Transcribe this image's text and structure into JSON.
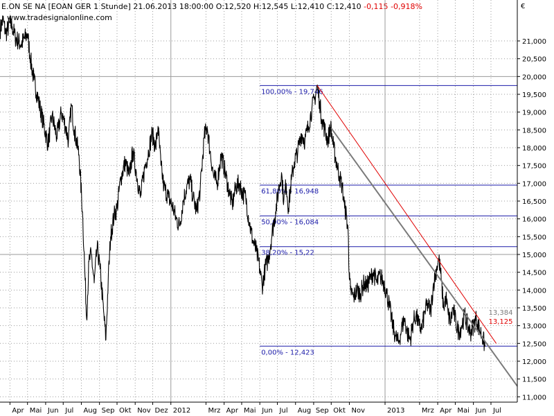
{
  "header": {
    "instrument": "E.ON SE NA [EOAN GER  1 Stunde] 21.06.2013 18:00:00",
    "open": "O:12,520",
    "high": "H:12,545",
    "low": "L:12,410",
    "close": "C:12,410",
    "change": "-0,115",
    "change_pct": "-0,918%"
  },
  "watermark": "www.tradesignalonline.com",
  "colors": {
    "price": "#000000",
    "fib": "#1a1aa8",
    "trend_grey": "#7a7a7a",
    "trend_red": "#e00000",
    "grid": "#9a9a9a"
  },
  "chart_data": {
    "type": "line",
    "ylabel": "€",
    "ylim": [
      10.85,
      22.15
    ],
    "y_ticks": [
      {
        "value": 11.0,
        "label": "11,000"
      },
      {
        "value": 11.5,
        "label": "11,500"
      },
      {
        "value": 12.0,
        "label": "12,000"
      },
      {
        "value": 12.5,
        "label": "12,500"
      },
      {
        "value": 13.0,
        "label": "13,000"
      },
      {
        "value": 13.5,
        "label": "13,500"
      },
      {
        "value": 14.0,
        "label": "14,000"
      },
      {
        "value": 14.5,
        "label": "14,500"
      },
      {
        "value": 15.0,
        "label": "15,000"
      },
      {
        "value": 15.5,
        "label": "15,500"
      },
      {
        "value": 16.0,
        "label": "16,000"
      },
      {
        "value": 16.5,
        "label": "16,500"
      },
      {
        "value": 17.0,
        "label": "17,000"
      },
      {
        "value": 17.5,
        "label": "17,500"
      },
      {
        "value": 18.0,
        "label": "18,000"
      },
      {
        "value": 18.5,
        "label": "18,500"
      },
      {
        "value": 19.0,
        "label": "19,000"
      },
      {
        "value": 19.5,
        "label": "19,500"
      },
      {
        "value": 20.0,
        "label": "20,000"
      },
      {
        "value": 20.5,
        "label": "20,500"
      },
      {
        "value": 21.0,
        "label": "21,000"
      }
    ],
    "x_range": [
      "2011-03-15",
      "2013-08-15"
    ],
    "x_ticks": [
      {
        "date": "2011-04-01",
        "label": "Apr"
      },
      {
        "date": "2011-05-01",
        "label": "Mai"
      },
      {
        "date": "2011-06-01",
        "label": "Jun"
      },
      {
        "date": "2011-07-01",
        "label": "Jul"
      },
      {
        "date": "2011-08-01",
        "label": "Aug"
      },
      {
        "date": "2011-09-01",
        "label": "Sep"
      },
      {
        "date": "2011-10-01",
        "label": "Okt"
      },
      {
        "date": "2011-11-01",
        "label": "Nov"
      },
      {
        "date": "2011-12-01",
        "label": "Dez"
      },
      {
        "date": "2012-01-01",
        "label": "2012"
      },
      {
        "date": "2012-03-01",
        "label": "Mrz"
      },
      {
        "date": "2012-04-01",
        "label": "Apr"
      },
      {
        "date": "2012-05-01",
        "label": "Mai"
      },
      {
        "date": "2012-06-01",
        "label": "Jun"
      },
      {
        "date": "2012-07-01",
        "label": "Jul"
      },
      {
        "date": "2012-08-01",
        "label": "Aug"
      },
      {
        "date": "2012-09-01",
        "label": "Sep"
      },
      {
        "date": "2012-10-01",
        "label": "Okt"
      },
      {
        "date": "2012-11-01",
        "label": "Nov"
      },
      {
        "date": "2013-01-01",
        "label": "2013"
      },
      {
        "date": "2013-03-01",
        "label": "Mrz"
      },
      {
        "date": "2013-04-01",
        "label": "Apr"
      },
      {
        "date": "2013-05-01",
        "label": "Mai"
      },
      {
        "date": "2013-06-01",
        "label": "Jun"
      },
      {
        "date": "2013-07-01",
        "label": "Jul"
      }
    ],
    "grid": true,
    "series": [
      {
        "points": [
          [
            "2011-03-15",
            21.3
          ],
          [
            "2011-03-20",
            21.6
          ],
          [
            "2011-03-25",
            21.2
          ],
          [
            "2011-04-01",
            21.5
          ],
          [
            "2011-04-05",
            21.4
          ],
          [
            "2011-04-10",
            21.1
          ],
          [
            "2011-04-20",
            20.9
          ],
          [
            "2011-05-01",
            21.2
          ],
          [
            "2011-05-06",
            20.5
          ],
          [
            "2011-05-12",
            19.9
          ],
          [
            "2011-05-20",
            19.3
          ],
          [
            "2011-05-28",
            18.7
          ],
          [
            "2011-06-05",
            18.1
          ],
          [
            "2011-06-12",
            18.9
          ],
          [
            "2011-06-20",
            18.3
          ],
          [
            "2011-06-28",
            19.0
          ],
          [
            "2011-07-05",
            18.6
          ],
          [
            "2011-07-10",
            18.2
          ],
          [
            "2011-07-15",
            19.2
          ],
          [
            "2011-07-20",
            18.5
          ],
          [
            "2011-07-28",
            17.8
          ],
          [
            "2011-08-03",
            16.2
          ],
          [
            "2011-08-07",
            14.5
          ],
          [
            "2011-08-10",
            13.2
          ],
          [
            "2011-08-14",
            14.8
          ],
          [
            "2011-08-18",
            15.0
          ],
          [
            "2011-08-23",
            14.2
          ],
          [
            "2011-08-28",
            15.2
          ],
          [
            "2011-09-02",
            14.6
          ],
          [
            "2011-09-08",
            13.4
          ],
          [
            "2011-09-12",
            12.6
          ],
          [
            "2011-09-16",
            14.3
          ],
          [
            "2011-09-20",
            15.5
          ],
          [
            "2011-09-26",
            16.1
          ],
          [
            "2011-10-01",
            16.3
          ],
          [
            "2011-10-07",
            17.1
          ],
          [
            "2011-10-15",
            17.6
          ],
          [
            "2011-10-22",
            17.2
          ],
          [
            "2011-10-28",
            17.9
          ],
          [
            "2011-11-03",
            17.3
          ],
          [
            "2011-11-10",
            16.6
          ],
          [
            "2011-11-17",
            17.4
          ],
          [
            "2011-11-24",
            17.9
          ],
          [
            "2011-11-30",
            18.4
          ],
          [
            "2011-12-06",
            18.0
          ],
          [
            "2011-12-10",
            18.6
          ],
          [
            "2011-12-15",
            17.5
          ],
          [
            "2011-12-20",
            16.9
          ],
          [
            "2011-12-28",
            16.6
          ],
          [
            "2012-01-05",
            16.3
          ],
          [
            "2012-01-10",
            16.0
          ],
          [
            "2012-01-16",
            15.8
          ],
          [
            "2012-01-22",
            16.5
          ],
          [
            "2012-01-28",
            16.9
          ],
          [
            "2012-02-03",
            17.1
          ],
          [
            "2012-02-08",
            16.6
          ],
          [
            "2012-02-14",
            16.2
          ],
          [
            "2012-02-20",
            16.8
          ],
          [
            "2012-02-27",
            18.3
          ],
          [
            "2012-03-03",
            18.6
          ],
          [
            "2012-03-08",
            17.9
          ],
          [
            "2012-03-14",
            17.2
          ],
          [
            "2012-03-20",
            17.0
          ],
          [
            "2012-03-27",
            17.8
          ],
          [
            "2012-04-03",
            17.3
          ],
          [
            "2012-04-09",
            16.8
          ],
          [
            "2012-04-15",
            16.4
          ],
          [
            "2012-04-21",
            16.9
          ],
          [
            "2012-04-27",
            17.0
          ],
          [
            "2012-05-03",
            16.7
          ],
          [
            "2012-05-08",
            16.6
          ],
          [
            "2012-05-14",
            15.9
          ],
          [
            "2012-05-20",
            15.4
          ],
          [
            "2012-05-26",
            15.1
          ],
          [
            "2012-06-01",
            14.6
          ],
          [
            "2012-06-05",
            14.1
          ],
          [
            "2012-06-10",
            14.6
          ],
          [
            "2012-06-16",
            14.9
          ],
          [
            "2012-06-22",
            15.6
          ],
          [
            "2012-06-28",
            16.2
          ],
          [
            "2012-07-03",
            16.8
          ],
          [
            "2012-07-08",
            17.3
          ],
          [
            "2012-07-12",
            16.5
          ],
          [
            "2012-07-16",
            17.0
          ],
          [
            "2012-07-20",
            16.3
          ],
          [
            "2012-07-25",
            17.1
          ],
          [
            "2012-07-30",
            17.6
          ],
          [
            "2012-08-05",
            17.9
          ],
          [
            "2012-08-11",
            18.4
          ],
          [
            "2012-08-17",
            18.2
          ],
          [
            "2012-08-23",
            18.6
          ],
          [
            "2012-08-29",
            19.1
          ],
          [
            "2012-09-03",
            19.4
          ],
          [
            "2012-09-07",
            19.746
          ],
          [
            "2012-09-11",
            19.3
          ],
          [
            "2012-09-15",
            18.8
          ],
          [
            "2012-09-20",
            18.5
          ],
          [
            "2012-09-25",
            18.2
          ],
          [
            "2012-09-30",
            18.6
          ],
          [
            "2012-10-05",
            18.0
          ],
          [
            "2012-10-10",
            17.6
          ],
          [
            "2012-10-15",
            17.2
          ],
          [
            "2012-10-20",
            16.9
          ],
          [
            "2012-10-24",
            16.3
          ],
          [
            "2012-10-27",
            16.1
          ],
          [
            "2012-10-30",
            15.6
          ],
          [
            "2012-11-01",
            14.3
          ],
          [
            "2012-11-03",
            14.0
          ],
          [
            "2012-11-08",
            13.8
          ],
          [
            "2012-11-14",
            14.0
          ],
          [
            "2012-11-20",
            13.9
          ],
          [
            "2012-11-26",
            14.2
          ],
          [
            "2012-12-01",
            14.1
          ],
          [
            "2012-12-06",
            14.3
          ],
          [
            "2012-12-12",
            14.5
          ],
          [
            "2012-12-18",
            14.2
          ],
          [
            "2012-12-24",
            14.4
          ],
          [
            "2012-12-30",
            14.2
          ],
          [
            "2013-01-04",
            13.9
          ],
          [
            "2013-01-09",
            13.5
          ],
          [
            "2013-01-14",
            13.0
          ],
          [
            "2013-01-19",
            12.7
          ],
          [
            "2013-01-24",
            12.5
          ],
          [
            "2013-01-29",
            12.9
          ],
          [
            "2013-02-03",
            13.2
          ],
          [
            "2013-02-08",
            12.8
          ],
          [
            "2013-02-13",
            12.6
          ],
          [
            "2013-02-18",
            13.1
          ],
          [
            "2013-02-23",
            13.3
          ],
          [
            "2013-02-28",
            13.0
          ],
          [
            "2013-03-05",
            12.9
          ],
          [
            "2013-03-10",
            13.4
          ],
          [
            "2013-03-15",
            13.6
          ],
          [
            "2013-03-20",
            13.4
          ],
          [
            "2013-03-25",
            14.2
          ],
          [
            "2013-03-30",
            14.6
          ],
          [
            "2013-04-03",
            14.9
          ],
          [
            "2013-04-07",
            14.3
          ],
          [
            "2013-04-11",
            13.5
          ],
          [
            "2013-04-15",
            13.8
          ],
          [
            "2013-04-19",
            13.3
          ],
          [
            "2013-04-23",
            13.1
          ],
          [
            "2013-04-27",
            13.5
          ],
          [
            "2013-05-02",
            13.1
          ],
          [
            "2013-05-07",
            12.8
          ],
          [
            "2013-05-12",
            13.0
          ],
          [
            "2013-05-17",
            13.3
          ],
          [
            "2013-05-22",
            13.0
          ],
          [
            "2013-05-27",
            12.8
          ],
          [
            "2013-06-01",
            13.0
          ],
          [
            "2013-06-06",
            13.2
          ],
          [
            "2013-06-11",
            12.9
          ],
          [
            "2013-06-16",
            12.7
          ],
          [
            "2013-06-21",
            12.41
          ]
        ]
      }
    ],
    "fibonacci_levels": [
      {
        "label": "100,00% - 19,746",
        "value": 19.746
      },
      {
        "label": "61,80% - 16,948",
        "value": 16.948
      },
      {
        "label": "50,00% - 16,084",
        "value": 16.084
      },
      {
        "label": "38,20% - 15,22",
        "value": 15.22
      },
      {
        "label": "0,00% - 12,423",
        "value": 12.423
      }
    ],
    "fib_range": [
      "2012-06-01",
      "2013-08-15"
    ],
    "trendlines": [
      {
        "color": "#7a7a7a",
        "from": [
          "2012-10-01",
          18.55
        ],
        "to": [
          "2013-08-15",
          11.3
        ],
        "value_label": "13,384",
        "label_at": [
          "2013-06-15",
          13.384
        ]
      },
      {
        "color": "#e00000",
        "from": [
          "2012-09-07",
          19.75
        ],
        "to": [
          "2013-07-10",
          12.5
        ],
        "value_label": "13,125",
        "label_at": [
          "2013-06-15",
          13.125
        ]
      }
    ]
  }
}
